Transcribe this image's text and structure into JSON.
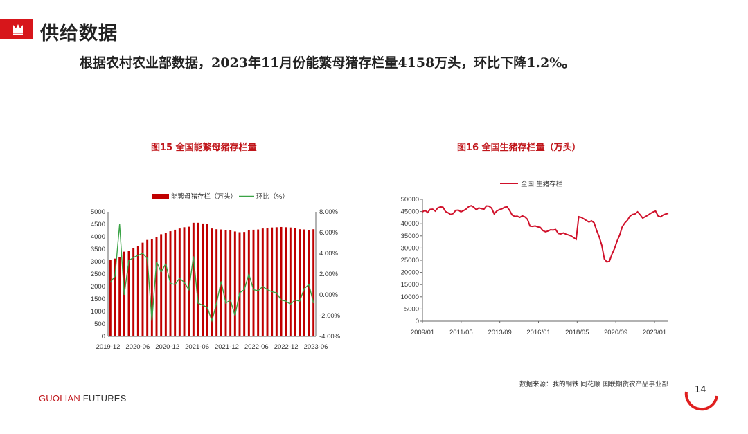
{
  "header": {
    "title": "供给数据",
    "subtitle": "根据农村农业部数据，2023年11月份能繁母猪存栏量4158万头，环比下降1.2%。"
  },
  "figures": {
    "fig15_title": "图15   全国能繁母猪存栏量",
    "fig16_title": "图16   全国生猪存栏量（万头）"
  },
  "footer": {
    "source": "数据来源：我的钢铁  同花顺  国联期货农产品事业部",
    "brand_main": "GUOLIAN",
    "brand_sub": " FUTURES",
    "page_number": "14"
  },
  "colors": {
    "accent": "#d7161b",
    "bar": "#c00000",
    "line_green": "#3aa346",
    "line_red": "#d0102a"
  },
  "chart_data": [
    {
      "type": "bar",
      "title": "图15   全国能繁母猪存栏量",
      "legend": [
        "能繁母猪存栏（万头）",
        "环比（%）"
      ],
      "legend_position": "top",
      "x_ticks": [
        "2019-12",
        "2020-06",
        "2020-12",
        "2021-06",
        "2021-12",
        "2022-06",
        "2022-12",
        "2023-06"
      ],
      "y_ticks": [
        "0",
        "500",
        "1000",
        "1500",
        "2000",
        "2500",
        "3000",
        "3500",
        "4000",
        "4500",
        "5000"
      ],
      "y2_ticks": [
        "-4.00%",
        "-2.00%",
        "0.00%",
        "2.00%",
        "4.00%",
        "6.00%",
        "8.00%"
      ],
      "ylim": [
        0,
        5000
      ],
      "y2lim": [
        -4,
        8
      ],
      "series": [
        {
          "name": "能繁母猪存栏（万头）",
          "type": "bar",
          "values": [
            3080,
            3120,
            3180,
            3400,
            3420,
            3550,
            3630,
            3760,
            3870,
            3900,
            4000,
            4100,
            4160,
            4220,
            4280,
            4330,
            4380,
            4400,
            4560,
            4560,
            4530,
            4500,
            4330,
            4300,
            4290,
            4270,
            4250,
            4210,
            4180,
            4190,
            4260,
            4280,
            4290,
            4330,
            4350,
            4370,
            4380,
            4390,
            4380,
            4370,
            4340,
            4300,
            4290,
            4270,
            4300
          ]
        },
        {
          "name": "环比（%）",
          "type": "line",
          "axis": "right",
          "values": [
            1.2,
            1.8,
            6.8,
            0.0,
            3.3,
            3.6,
            3.8,
            4.0,
            3.5,
            -2.5,
            3.2,
            2.2,
            3.0,
            1.1,
            1.0,
            1.6,
            1.2,
            0.5,
            3.7,
            -0.8,
            -1.0,
            -1.2,
            -2.5,
            -0.8,
            1.3,
            -0.8,
            -0.5,
            -2.0,
            0.2,
            0.5,
            2.0,
            0.5,
            0.4,
            0.8,
            0.5,
            0.3,
            0.2,
            -0.5,
            -0.6,
            -0.9,
            -0.5,
            -0.6,
            0.6,
            1.0,
            -0.8
          ]
        }
      ]
    },
    {
      "type": "line",
      "title": "图16   全国生猪存栏量（万头）",
      "legend": [
        "全国:生猪存栏"
      ],
      "legend_position": "top",
      "x_ticks": [
        "2009/01",
        "2011/05",
        "2013/09",
        "2016/01",
        "2018/05",
        "2020/09",
        "2023/01"
      ],
      "y_ticks": [
        "0",
        "5000",
        "10000",
        "15000",
        "20000",
        "25000",
        "30000",
        "35000",
        "40000",
        "45000",
        "50000"
      ],
      "ylim": [
        0,
        50000
      ],
      "series": [
        {
          "name": "全国:生猪存栏",
          "x_range": [
            "2009/01",
            "2023/09"
          ],
          "values": [
            44900,
            45500,
            44600,
            45900,
            46000,
            45200,
            46500,
            46900,
            46800,
            45000,
            44500,
            43800,
            44200,
            45500,
            45600,
            44900,
            45400,
            46000,
            47000,
            47400,
            46800,
            45800,
            46500,
            46200,
            46000,
            47300,
            47200,
            46400,
            44100,
            45200,
            45800,
            46100,
            46700,
            47000,
            45500,
            43600,
            43000,
            43100,
            42600,
            43200,
            42800,
            41800,
            39000,
            38900,
            39100,
            38700,
            38500,
            37200,
            36700,
            37000,
            37500,
            37400,
            37600,
            36000,
            35800,
            36200,
            35700,
            35400,
            35000,
            34300,
            33600,
            42900,
            42600,
            42000,
            41300,
            40700,
            41200,
            40400,
            37200,
            34600,
            31100,
            25500,
            24300,
            24600,
            27500,
            29800,
            32900,
            35300,
            38700,
            40300,
            41400,
            43100,
            43800,
            44000,
            44900,
            43700,
            42300,
            42900,
            43500,
            44200,
            44800,
            45200,
            43200,
            42800,
            43600,
            44000,
            44300
          ]
        }
      ]
    }
  ]
}
